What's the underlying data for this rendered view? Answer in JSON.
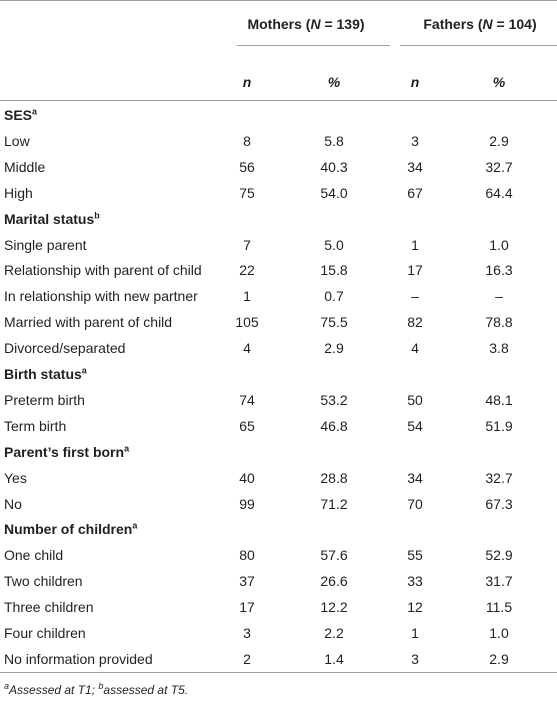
{
  "header": {
    "groups": [
      [
        {
          "text": "Mothers ("
        },
        {
          "text": "N",
          "italic": true
        },
        {
          "text": " = 139)"
        }
      ],
      [
        {
          "text": "Fathers ("
        },
        {
          "text": "N",
          "italic": true
        },
        {
          "text": " = 104)"
        }
      ]
    ],
    "columns": [
      "n",
      "%",
      "n",
      "%"
    ]
  },
  "sections": [
    {
      "title": "SES",
      "note": "a",
      "rows": [
        {
          "label": "Low",
          "values": [
            "8",
            "5.8",
            "3",
            "2.9"
          ]
        },
        {
          "label": "Middle",
          "values": [
            "56",
            "40.3",
            "34",
            "32.7"
          ]
        },
        {
          "label": "High",
          "values": [
            "75",
            "54.0",
            "67",
            "64.4"
          ]
        }
      ]
    },
    {
      "title": "Marital status",
      "note": "b",
      "rows": [
        {
          "label": "Single parent",
          "values": [
            "7",
            "5.0",
            "1",
            "1.0"
          ]
        },
        {
          "label": "Relationship with parent of child",
          "values": [
            "22",
            "15.8",
            "17",
            "16.3"
          ]
        },
        {
          "label": "In relationship with new partner",
          "values": [
            "1",
            "0.7",
            "–",
            "–"
          ]
        },
        {
          "label": "Married with parent of child",
          "values": [
            "105",
            "75.5",
            "82",
            "78.8"
          ]
        },
        {
          "label": "Divorced/separated",
          "values": [
            "4",
            "2.9",
            "4",
            "3.8"
          ]
        }
      ]
    },
    {
      "title": "Birth status",
      "note": "a",
      "rows": [
        {
          "label": "Preterm birth",
          "values": [
            "74",
            "53.2",
            "50",
            "48.1"
          ]
        },
        {
          "label": "Term birth",
          "values": [
            "65",
            "46.8",
            "54",
            "51.9"
          ]
        }
      ]
    },
    {
      "title": "Parent’s first born",
      "note": "a",
      "rows": [
        {
          "label": "Yes",
          "values": [
            "40",
            "28.8",
            "34",
            "32.7"
          ]
        },
        {
          "label": "No",
          "values": [
            "99",
            "71.2",
            "70",
            "67.3"
          ]
        }
      ]
    },
    {
      "title": "Number of children",
      "note": "a",
      "rows": [
        {
          "label": "One child",
          "values": [
            "80",
            "57.6",
            "55",
            "52.9"
          ]
        },
        {
          "label": "Two children",
          "values": [
            "37",
            "26.6",
            "33",
            "31.7"
          ]
        },
        {
          "label": "Three children",
          "values": [
            "17",
            "12.2",
            "12",
            "11.5"
          ]
        },
        {
          "label": "Four children",
          "values": [
            "3",
            "2.2",
            "1",
            "1.0"
          ]
        },
        {
          "label": "No information provided",
          "values": [
            "2",
            "1.4",
            "3",
            "2.9"
          ]
        }
      ]
    }
  ],
  "footnote": [
    {
      "text": "a",
      "sup": true
    },
    {
      "text": "Assessed at T1; "
    },
    {
      "text": "b",
      "sup": true
    },
    {
      "text": "assessed at T5."
    }
  ]
}
